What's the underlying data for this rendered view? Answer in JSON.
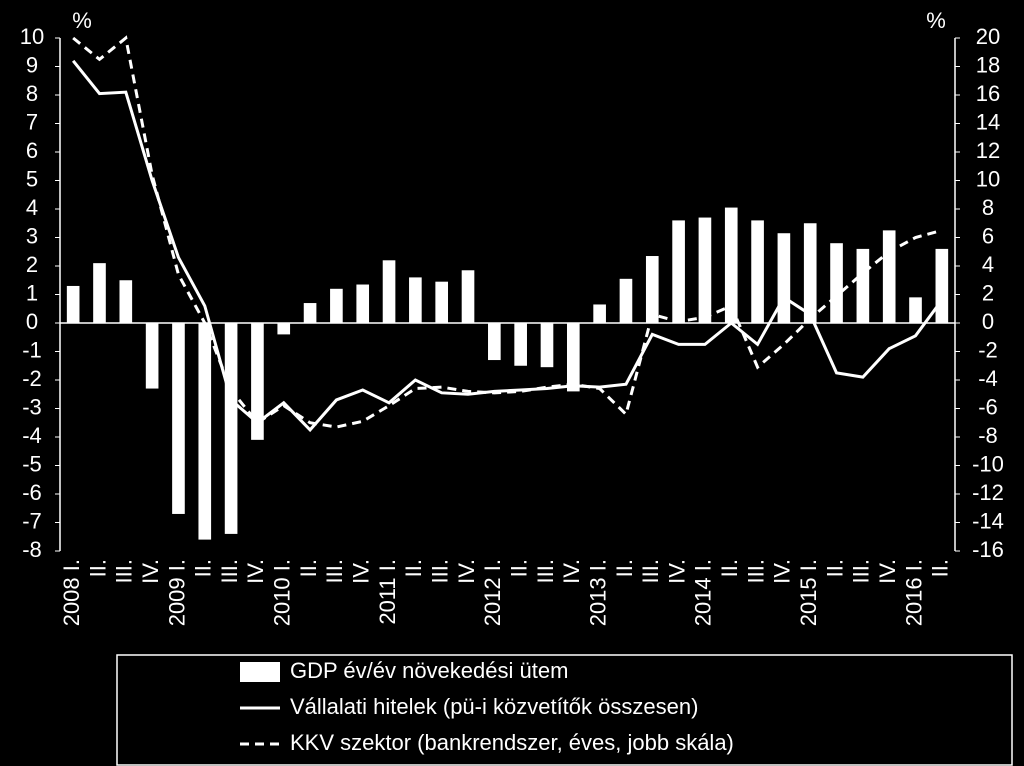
{
  "chart_data": {
    "type": "bar",
    "ylabel": "%",
    "y2label": "%",
    "categories": [
      "2008 I.",
      "II.",
      "III.",
      "IV.",
      "2009 I.",
      "II.",
      "III.",
      "IV.",
      "2010 I.",
      "II.",
      "III.",
      "IV.",
      "2011 I.",
      "II.",
      "III.",
      "IV.",
      "2012 I.",
      "II.",
      "III.",
      "IV.",
      "2013 I.",
      "II.",
      "III.",
      "IV.",
      "2014 I.",
      "II.",
      "III.",
      "IV.",
      "2015 I.",
      "II.",
      "III.",
      "IV.",
      "2016 I.",
      "II."
    ],
    "series": [
      {
        "name": "GDP év/év növekedési ütem",
        "type": "bar",
        "color": "#ffffff",
        "values": [
          1.3,
          2.1,
          1.5,
          -2.3,
          -6.7,
          -7.6,
          -7.4,
          -4.1,
          -0.4,
          0.7,
          1.2,
          1.35,
          2.2,
          1.6,
          1.45,
          1.85,
          -1.3,
          -1.5,
          -1.55,
          -2.4,
          0.65,
          1.55,
          2.35,
          3.6,
          3.7,
          4.05,
          3.6,
          3.15,
          3.5,
          2.8,
          2.6,
          3.25,
          0.9,
          2.6
        ]
      },
      {
        "name": "Vállalati hitelek (pü-i közvetítők összesen)",
        "type": "line",
        "color": "#ffffff",
        "dash": "solid",
        "values": [
          9.2,
          8.05,
          8.1,
          5.0,
          2.3,
          0.6,
          -2.7,
          -3.5,
          -2.8,
          -3.75,
          -2.7,
          -2.35,
          -2.8,
          -2.0,
          -2.45,
          -2.5,
          -2.4,
          -2.35,
          -2.3,
          -2.2,
          -2.25,
          -2.15,
          -0.4,
          -0.75,
          -0.75,
          0.0,
          -0.75,
          0.9,
          0.3,
          -1.75,
          -1.9,
          -0.9,
          -0.45,
          0.8
        ]
      },
      {
        "name": "KKV szektor (bankrendszer, éves, jobb skála)",
        "type": "line",
        "color": "#ffffff",
        "dash": "dashed",
        "axis": "y2",
        "values": [
          20,
          18.5,
          20,
          10.4,
          3.4,
          0,
          -4.7,
          -7,
          -5.8,
          -7.0,
          -7.3,
          -6.9,
          -5.8,
          -4.6,
          -4.5,
          -4.8,
          -4.9,
          -4.8,
          -4.5,
          -4.3,
          -4.6,
          -6.4,
          0.6,
          0.1,
          0.4,
          1.2,
          -3.1,
          -1.5,
          0.3,
          1.9,
          3.5,
          5.0,
          6.0,
          6.5
        ]
      }
    ],
    "ylim": [
      -8,
      10
    ],
    "yticks": [
      -8,
      -7,
      -6,
      -5,
      -4,
      -3,
      -2,
      -1,
      0,
      1,
      2,
      3,
      4,
      5,
      6,
      7,
      8,
      9,
      10
    ],
    "y2lim": [
      -16,
      20
    ],
    "y2ticks": [
      -16,
      -14,
      -12,
      -10,
      -8,
      -6,
      -4,
      -2,
      0,
      2,
      4,
      6,
      8,
      10,
      12,
      14,
      16,
      18,
      20
    ],
    "legend": "bottom"
  }
}
